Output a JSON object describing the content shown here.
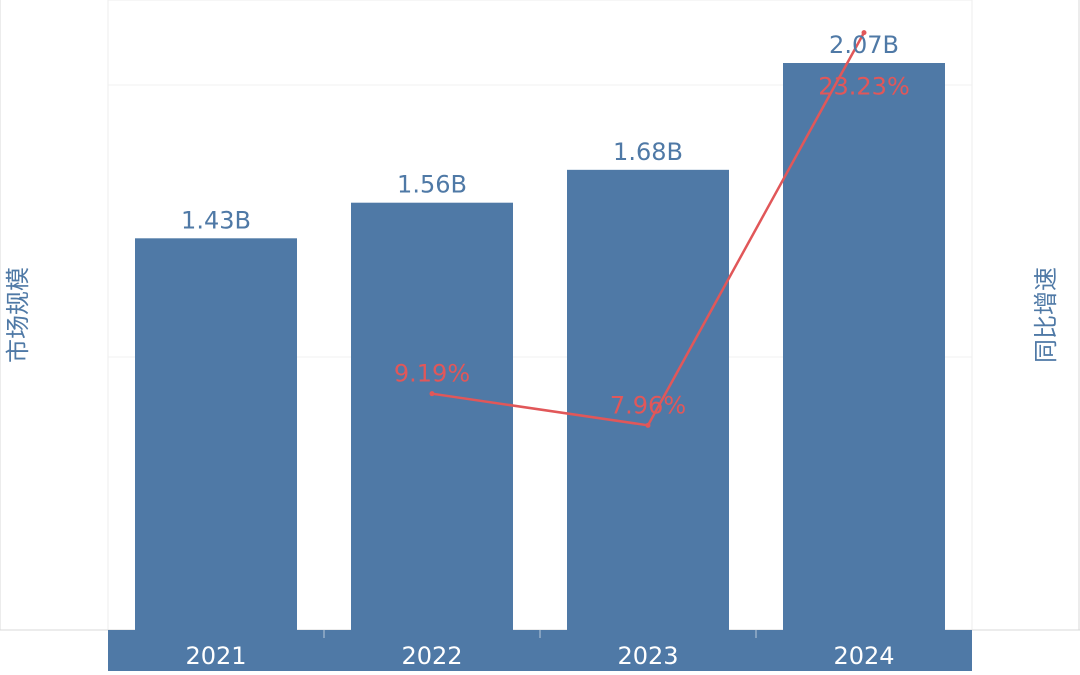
{
  "chart_data": {
    "type": "bar",
    "categories": [
      "2021",
      "2022",
      "2023",
      "2024"
    ],
    "series": [
      {
        "values": [
          1.43,
          1.56,
          1.68,
          2.07
        ],
        "labels": [
          "1.43B",
          "1.56B",
          "1.68B",
          "2.07B"
        ]
      },
      {
        "type": "line",
        "values": [
          null,
          9.19,
          7.96,
          23.23
        ],
        "labels": [
          "",
          "9.19%",
          "7.96%",
          "23.23%"
        ]
      }
    ],
    "ylabel": "市场规模",
    "y2label": "同比增速",
    "ylim": [
      0,
      2.3
    ],
    "y2lim": [
      0,
      24.5
    ],
    "grid": true
  },
  "colors": {
    "bar": "#4f79a6",
    "line": "#e15759",
    "axis_title": "#4f79a6",
    "category_band": "#4f79a6",
    "category_text": "#ffffff"
  }
}
